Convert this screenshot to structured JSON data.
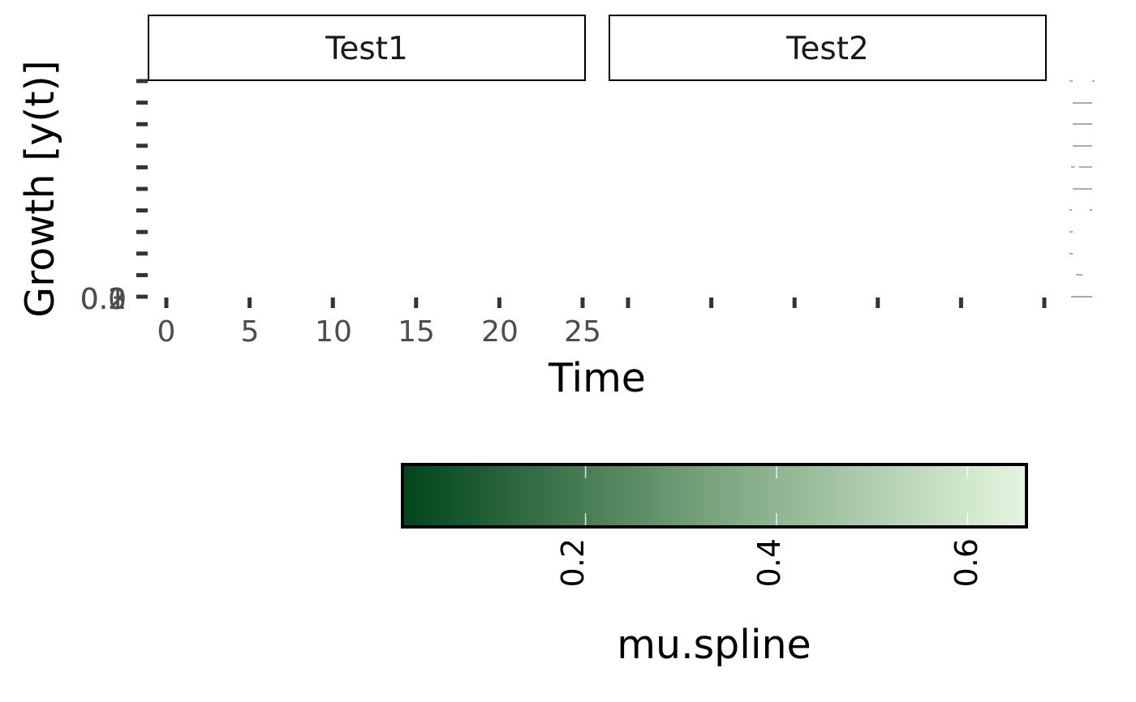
{
  "chart_data": {
    "type": "line",
    "panels": [
      "Test1",
      "Test2"
    ],
    "xlabel": "Time",
    "ylabel": "Growth [y(t)]",
    "x_ticks": [
      0,
      5,
      10,
      15,
      20,
      25
    ],
    "y_tick_labels": [
      "0.0",
      "0.1",
      "0.2",
      "0.3"
    ],
    "series": [],
    "legend": {
      "title": "mu.spline",
      "position": "bottom",
      "type": "colorbar",
      "range": [
        0.01,
        0.66
      ],
      "ticks": [
        0.2,
        0.4,
        0.6
      ],
      "tick_labels": [
        "0.2",
        "0.4",
        "0.6"
      ],
      "color_low": "#00441b",
      "color_high": "#e5f5e0"
    }
  }
}
